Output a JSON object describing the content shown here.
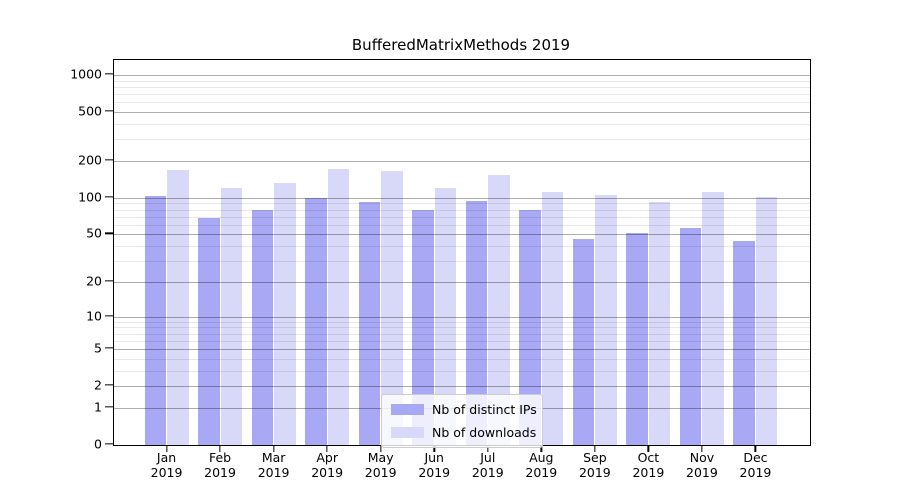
{
  "chart_data": {
    "type": "bar",
    "title": "BufferedMatrixMethods 2019",
    "year": "2019",
    "categories": [
      "Jan",
      "Feb",
      "Mar",
      "Apr",
      "May",
      "Jun",
      "Jul",
      "Aug",
      "Sep",
      "Oct",
      "Nov",
      "Dec"
    ],
    "series": [
      {
        "name": "Nb of distinct IPs",
        "color": "#a8a8f5",
        "values": [
          104,
          68,
          80,
          100,
          92,
          79,
          95,
          80,
          46,
          51,
          56,
          44
        ]
      },
      {
        "name": "Nb of downloads",
        "color": "#d8d8f8",
        "values": [
          170,
          120,
          132,
          172,
          167,
          120,
          155,
          112,
          105,
          93,
          111,
          102
        ]
      }
    ],
    "yscale": "log1p",
    "ylim": [
      0,
      1324
    ],
    "yticks": [
      0,
      1,
      2,
      5,
      10,
      20,
      50,
      100,
      200,
      500,
      1000
    ],
    "minor_gridlines": [
      3,
      4,
      6,
      7,
      8,
      9,
      30,
      40,
      60,
      70,
      80,
      90,
      300,
      400,
      600,
      700,
      800,
      900
    ],
    "grid": "on",
    "legend_position": "lower center-right"
  }
}
